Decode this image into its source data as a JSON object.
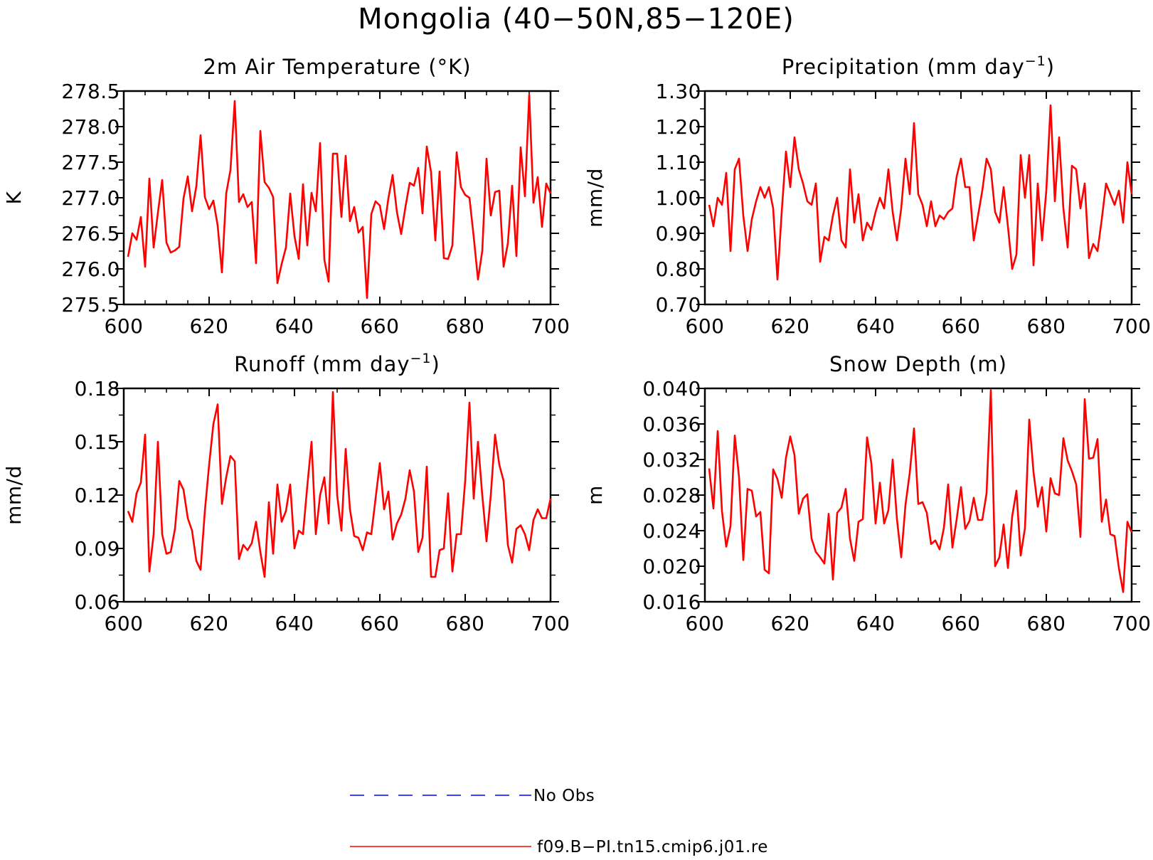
{
  "title": "Mongolia (40−50N,85−120E)",
  "colors": {
    "model_line": "#ff0000",
    "obs_line": "#0000ff",
    "axis": "#000000"
  },
  "legend": [
    {
      "label": "No Obs",
      "color": "#0000ff",
      "style": "dashed"
    },
    {
      "label": "f09.B−PI.tn15.cmip6.j01.re",
      "color": "#ff0000",
      "style": "solid"
    }
  ],
  "chart_data": [
    {
      "type": "line",
      "title": "2m Air Temperature (°K)",
      "title_superscript": "",
      "title_suffix": "",
      "ylabel": "K",
      "xlim": [
        600,
        700
      ],
      "ylim": [
        275.5,
        278.5
      ],
      "xticks": [
        600,
        620,
        640,
        660,
        680,
        700
      ],
      "xtick_labels": [
        "600",
        "620",
        "640",
        "660",
        "680",
        "700"
      ],
      "yticks": [
        275.5,
        276.0,
        276.5,
        277.0,
        277.5,
        278.0,
        278.5
      ],
      "ytick_labels": [
        "275.5",
        "276.0",
        "276.5",
        "277.0",
        "277.5",
        "278.0",
        "278.5"
      ],
      "x_start": 601,
      "series": [
        {
          "values": [
            276.17,
            276.5,
            276.41,
            276.73,
            276.03,
            277.27,
            276.3,
            276.79,
            277.25,
            276.37,
            276.23,
            276.26,
            276.31,
            276.99,
            277.3,
            276.81,
            277.16,
            277.88,
            277.01,
            276.84,
            276.96,
            276.61,
            275.95,
            277.06,
            277.39,
            278.36,
            276.94,
            277.05,
            276.87,
            276.94,
            276.08,
            277.94,
            277.22,
            277.14,
            277.01,
            275.8,
            276.07,
            276.3,
            277.06,
            276.46,
            276.14,
            277.19,
            276.33,
            277.07,
            276.81,
            277.77,
            276.13,
            275.82,
            277.62,
            277.62,
            276.73,
            277.59,
            276.67,
            276.87,
            276.51,
            276.59,
            275.59,
            276.77,
            276.95,
            276.89,
            276.56,
            276.99,
            277.32,
            276.8,
            276.49,
            276.87,
            277.21,
            277.17,
            277.42,
            276.78,
            277.72,
            277.36,
            276.4,
            277.37,
            276.15,
            276.14,
            276.33,
            277.64,
            277.15,
            277.04,
            277.0,
            276.45,
            275.85,
            276.25,
            277.55,
            276.75,
            277.08,
            277.1,
            276.03,
            276.36,
            277.17,
            276.18,
            277.71,
            277.02,
            278.45,
            276.93,
            277.29,
            276.59,
            277.2,
            277.06
          ]
        }
      ]
    },
    {
      "type": "line",
      "title": "Precipitation (mm day",
      "title_superscript": "−1",
      "title_suffix": ")",
      "ylabel": "mm/d",
      "xlim": [
        600,
        700
      ],
      "ylim": [
        0.7,
        1.3
      ],
      "xticks": [
        600,
        620,
        640,
        660,
        680,
        700
      ],
      "xtick_labels": [
        "600",
        "620",
        "640",
        "660",
        "680",
        "700"
      ],
      "yticks": [
        0.7,
        0.8,
        0.9,
        1.0,
        1.1,
        1.2,
        1.3
      ],
      "ytick_labels": [
        "0.70",
        "0.80",
        "0.90",
        "1.00",
        "1.10",
        "1.20",
        "1.30"
      ],
      "x_start": 601,
      "series": [
        {
          "values": [
            0.98,
            0.92,
            1.0,
            0.98,
            1.07,
            0.85,
            1.08,
            1.11,
            0.95,
            0.85,
            0.94,
            0.99,
            1.03,
            1.0,
            1.03,
            0.97,
            0.77,
            0.96,
            1.13,
            1.03,
            1.17,
            1.08,
            1.04,
            0.99,
            0.98,
            1.04,
            0.82,
            0.89,
            0.88,
            0.95,
            1.0,
            0.88,
            0.86,
            1.08,
            0.93,
            1.01,
            0.88,
            0.93,
            0.91,
            0.96,
            1.0,
            0.97,
            1.08,
            0.96,
            0.88,
            0.97,
            1.11,
            1.01,
            1.21,
            1.01,
            0.98,
            0.92,
            0.99,
            0.92,
            0.95,
            0.94,
            0.96,
            0.97,
            1.06,
            1.11,
            1.03,
            1.03,
            0.88,
            0.95,
            1.02,
            1.11,
            1.08,
            0.96,
            0.93,
            1.03,
            0.92,
            0.8,
            0.84,
            1.12,
            1.0,
            1.12,
            0.81,
            1.04,
            0.88,
            1.02,
            1.26,
            0.99,
            1.17,
            0.97,
            0.86,
            1.09,
            1.08,
            0.97,
            1.04,
            0.83,
            0.87,
            0.85,
            0.94,
            1.04,
            1.01,
            0.98,
            1.02,
            0.93,
            1.1,
            1.01
          ]
        }
      ]
    },
    {
      "type": "line",
      "title": "Runoff (mm day",
      "title_superscript": "−1",
      "title_suffix": ")",
      "ylabel": "mm/d",
      "xlim": [
        600,
        700
      ],
      "ylim": [
        0.06,
        0.18
      ],
      "xticks": [
        600,
        620,
        640,
        660,
        680,
        700
      ],
      "xtick_labels": [
        "600",
        "620",
        "640",
        "660",
        "680",
        "700"
      ],
      "yticks": [
        0.06,
        0.09,
        0.12,
        0.15,
        0.18
      ],
      "ytick_labels": [
        "0.06",
        "0.09",
        "0.12",
        "0.15",
        "0.18"
      ],
      "x_start": 601,
      "series": [
        {
          "values": [
            0.111,
            0.105,
            0.121,
            0.127,
            0.154,
            0.077,
            0.098,
            0.15,
            0.098,
            0.087,
            0.088,
            0.101,
            0.128,
            0.123,
            0.107,
            0.1,
            0.083,
            0.078,
            0.111,
            0.137,
            0.16,
            0.171,
            0.115,
            0.13,
            0.142,
            0.139,
            0.084,
            0.092,
            0.089,
            0.093,
            0.105,
            0.088,
            0.074,
            0.116,
            0.087,
            0.126,
            0.105,
            0.111,
            0.126,
            0.09,
            0.1,
            0.098,
            0.125,
            0.15,
            0.098,
            0.12,
            0.13,
            0.104,
            0.178,
            0.12,
            0.1,
            0.146,
            0.112,
            0.097,
            0.096,
            0.089,
            0.099,
            0.098,
            0.118,
            0.138,
            0.112,
            0.122,
            0.095,
            0.104,
            0.109,
            0.118,
            0.134,
            0.122,
            0.088,
            0.096,
            0.136,
            0.074,
            0.074,
            0.089,
            0.09,
            0.121,
            0.077,
            0.098,
            0.098,
            0.128,
            0.172,
            0.118,
            0.15,
            0.12,
            0.094,
            0.12,
            0.154,
            0.137,
            0.128,
            0.092,
            0.082,
            0.101,
            0.103,
            0.098,
            0.089,
            0.106,
            0.112,
            0.107,
            0.107,
            0.118
          ]
        }
      ]
    },
    {
      "type": "line",
      "title": "Snow Depth (m)",
      "title_superscript": "",
      "title_suffix": "",
      "ylabel": "m",
      "xlim": [
        600,
        700
      ],
      "ylim": [
        0.016,
        0.04
      ],
      "xticks": [
        600,
        620,
        640,
        660,
        680,
        700
      ],
      "xtick_labels": [
        "600",
        "620",
        "640",
        "660",
        "680",
        "700"
      ],
      "yticks": [
        0.016,
        0.02,
        0.024,
        0.028,
        0.032,
        0.036,
        0.04
      ],
      "ytick_labels": [
        "0.016",
        "0.020",
        "0.024",
        "0.028",
        "0.032",
        "0.036",
        "0.040"
      ],
      "x_start": 601,
      "series": [
        {
          "values": [
            0.031,
            0.0265,
            0.0352,
            0.0262,
            0.0222,
            0.0245,
            0.0347,
            0.03,
            0.0207,
            0.0287,
            0.0285,
            0.0256,
            0.0261,
            0.0196,
            0.0192,
            0.0309,
            0.0298,
            0.0277,
            0.0322,
            0.0346,
            0.0325,
            0.0259,
            0.0276,
            0.0281,
            0.0231,
            0.0216,
            0.021,
            0.0203,
            0.0259,
            0.0185,
            0.026,
            0.0266,
            0.0287,
            0.0231,
            0.0206,
            0.025,
            0.0253,
            0.0345,
            0.0316,
            0.0248,
            0.0294,
            0.0248,
            0.0263,
            0.032,
            0.0253,
            0.021,
            0.0269,
            0.0305,
            0.0355,
            0.027,
            0.0272,
            0.026,
            0.0225,
            0.0229,
            0.0219,
            0.0243,
            0.0292,
            0.0221,
            0.0253,
            0.0289,
            0.0242,
            0.0251,
            0.0277,
            0.0252,
            0.0252,
            0.0282,
            0.0398,
            0.02,
            0.021,
            0.0247,
            0.0198,
            0.0256,
            0.0285,
            0.0212,
            0.0243,
            0.0365,
            0.0306,
            0.0267,
            0.0289,
            0.0239,
            0.0299,
            0.0282,
            0.028,
            0.0344,
            0.0319,
            0.0307,
            0.0292,
            0.0233,
            0.0388,
            0.0321,
            0.0322,
            0.0343,
            0.025,
            0.0275,
            0.0236,
            0.0234,
            0.0198,
            0.0171,
            0.025,
            0.0238
          ]
        }
      ]
    }
  ]
}
